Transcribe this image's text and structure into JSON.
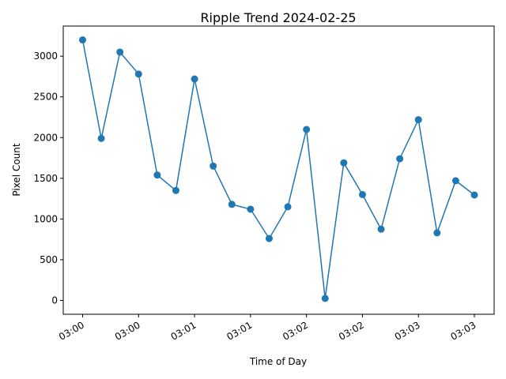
{
  "chart_data": {
    "type": "line",
    "title": "Ripple Trend 2024-02-25",
    "xlabel": "Time of Day",
    "ylabel": "Pixel Count",
    "x": [
      "03:00:00",
      "03:00:10",
      "03:00:20",
      "03:00:30",
      "03:00:40",
      "03:00:50",
      "03:01:00",
      "03:01:10",
      "03:01:20",
      "03:01:30",
      "03:01:40",
      "03:01:50",
      "03:02:00",
      "03:02:10",
      "03:02:20",
      "03:02:30",
      "03:02:40",
      "03:02:50",
      "03:03:00",
      "03:03:10",
      "03:03:20",
      "03:03:30"
    ],
    "values": [
      3200,
      1990,
      3050,
      2780,
      1540,
      1350,
      2720,
      1650,
      1180,
      1120,
      760,
      1150,
      2100,
      25,
      1690,
      1300,
      875,
      1740,
      2220,
      830,
      1470,
      1295
    ],
    "x_tick_labels": [
      "03:00",
      "03:00",
      "03:01",
      "03:01",
      "03:02",
      "03:02",
      "03:03",
      "03:03"
    ],
    "y_ticks": [
      0,
      500,
      1000,
      1500,
      2000,
      2500,
      3000
    ],
    "ylim": [
      -170,
      3370
    ],
    "grid": false,
    "color": "#1f77b4"
  }
}
